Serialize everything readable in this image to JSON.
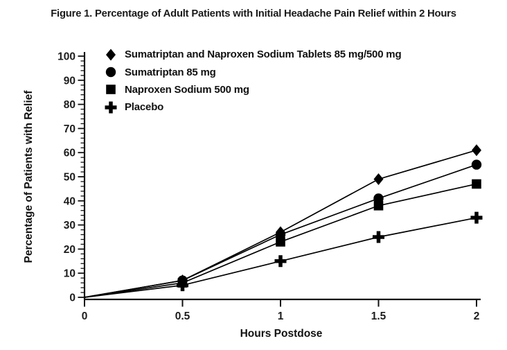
{
  "figure": {
    "title": "Figure 1. Percentage of Adult Patients with Initial Headache Pain Relief within 2 Hours"
  },
  "chart_data": {
    "type": "line",
    "title": "Figure 1. Percentage of Adult Patients with Initial Headache Pain Relief within 2 Hours",
    "xlabel": "Hours Postdose",
    "ylabel": "Percentage of Patients with Relief",
    "x": [
      0,
      0.5,
      1,
      1.5,
      2
    ],
    "xtick_labels": [
      "0",
      "0.5",
      "1",
      "1.5",
      "2"
    ],
    "xlim": [
      0,
      2
    ],
    "ylim": [
      0,
      100
    ],
    "ytick_step": 10,
    "y_minor_step": 2,
    "grid": false,
    "legend_position": "top-left-inside",
    "line_color": "#000000",
    "series": [
      {
        "name": "Sumatriptan and Naproxen Sodium Tablets 85 mg/500 mg",
        "marker": "diamond",
        "values": [
          0,
          7,
          27,
          49,
          61
        ]
      },
      {
        "name": "Sumatriptan 85 mg",
        "marker": "circle",
        "values": [
          0,
          7,
          26,
          41,
          55
        ]
      },
      {
        "name": "Naproxen Sodium 500 mg",
        "marker": "square",
        "values": [
          0,
          6,
          23,
          38,
          47
        ]
      },
      {
        "name": "Placebo",
        "marker": "plus",
        "values": [
          0,
          5,
          15,
          25,
          33
        ]
      }
    ]
  }
}
